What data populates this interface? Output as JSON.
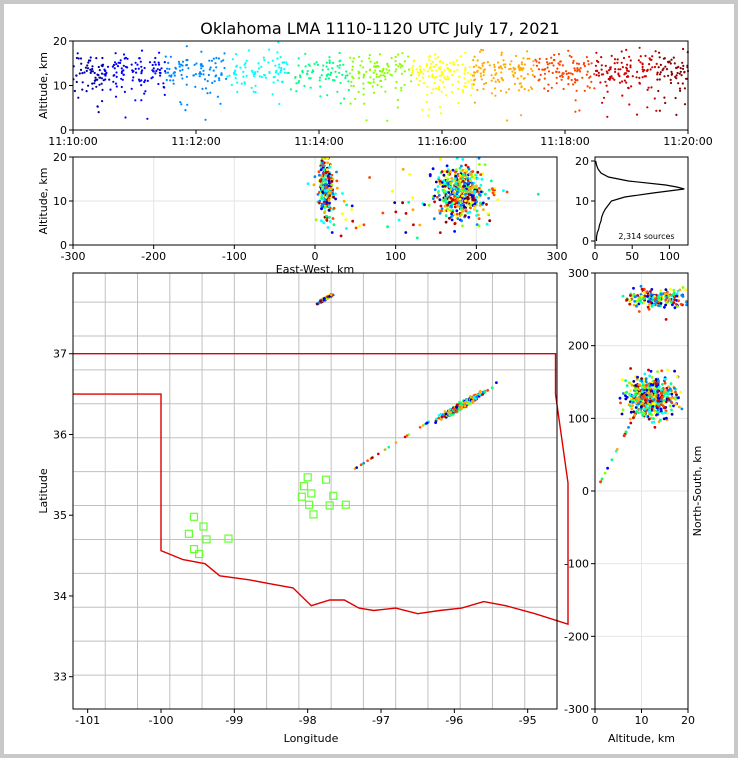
{
  "title": "Oklahoma LMA 1110-1120 UTC July 17, 2021",
  "chart_data": [
    {
      "id": "time_height",
      "type": "scatter",
      "ylabel": "Altitude, km",
      "xlim": [
        "11:10:00",
        "11:20:00"
      ],
      "ylim": [
        0,
        20
      ],
      "xticks": [
        "11:10:00",
        "11:12:00",
        "11:14:00",
        "11:16:00",
        "11:18:00",
        "11:20:00"
      ],
      "yticks": [
        0,
        10,
        20
      ],
      "color_by": "time (blue to red)",
      "density_by_minute": [
        1.0,
        0.85,
        0.7,
        0.65,
        0.9,
        1.0,
        1.0,
        0.9,
        0.95,
        1.0
      ],
      "altitude_mean_km": 13,
      "altitude_spread_km": 3
    },
    {
      "id": "ew_height",
      "type": "scatter",
      "xlabel": "East-West, km",
      "ylabel": "Altitude, km",
      "xlim": [
        -300,
        300
      ],
      "ylim": [
        0,
        20
      ],
      "xticks": [
        -300,
        -200,
        -100,
        0,
        100,
        200,
        300
      ],
      "yticks": [
        0,
        10,
        20
      ],
      "clusters": [
        {
          "x_center_km": 14,
          "x_spread_km": 4,
          "z_center_km": 13,
          "z_spread_km": 4
        },
        {
          "x_center_km": 180,
          "x_spread_km": 14,
          "z_center_km": 12,
          "z_spread_km": 4
        }
      ]
    },
    {
      "id": "altitude_histogram",
      "type": "line",
      "annotation": "2,314 sources",
      "xlim": [
        0,
        125
      ],
      "ylim": [
        -1,
        21
      ],
      "xticks": [
        0,
        50,
        100
      ],
      "yticks": [
        0,
        10,
        20
      ],
      "profile": [
        {
          "alt_km": 0,
          "count": 2
        },
        {
          "alt_km": 1,
          "count": 2
        },
        {
          "alt_km": 2,
          "count": 3
        },
        {
          "alt_km": 3,
          "count": 5
        },
        {
          "alt_km": 4,
          "count": 6
        },
        {
          "alt_km": 5,
          "count": 8
        },
        {
          "alt_km": 6,
          "count": 9
        },
        {
          "alt_km": 7,
          "count": 11
        },
        {
          "alt_km": 8,
          "count": 14
        },
        {
          "alt_km": 9,
          "count": 18
        },
        {
          "alt_km": 10,
          "count": 22
        },
        {
          "alt_km": 11,
          "count": 40
        },
        {
          "alt_km": 12,
          "count": 78
        },
        {
          "alt_km": 13,
          "count": 120
        },
        {
          "alt_km": 13.5,
          "count": 110
        },
        {
          "alt_km": 14,
          "count": 95
        },
        {
          "alt_km": 15,
          "count": 45
        },
        {
          "alt_km": 16,
          "count": 18
        },
        {
          "alt_km": 17,
          "count": 8
        },
        {
          "alt_km": 18,
          "count": 4
        },
        {
          "alt_km": 19,
          "count": 2
        },
        {
          "alt_km": 20,
          "count": 1
        }
      ]
    },
    {
      "id": "plan_view",
      "type": "scatter",
      "xlabel": "Longitude",
      "ylabel": "Latitude",
      "xlim": [
        -101.2,
        -94.6
      ],
      "ylim": [
        32.6,
        38.0
      ],
      "xticks": [
        -101,
        -100,
        -99,
        -98,
        -97,
        -96,
        -95
      ],
      "yticks": [
        33,
        34,
        35,
        36,
        37
      ],
      "stations": [
        {
          "lon": -99.55,
          "lat": 34.98
        },
        {
          "lon": -99.42,
          "lat": 34.86
        },
        {
          "lon": -99.62,
          "lat": 34.77
        },
        {
          "lon": -99.38,
          "lat": 34.7
        },
        {
          "lon": -99.55,
          "lat": 34.58
        },
        {
          "lon": -99.48,
          "lat": 34.52
        },
        {
          "lon": -99.08,
          "lat": 34.71
        },
        {
          "lon": -98.0,
          "lat": 35.47
        },
        {
          "lon": -98.05,
          "lat": 35.36
        },
        {
          "lon": -98.08,
          "lat": 35.23
        },
        {
          "lon": -97.95,
          "lat": 35.27
        },
        {
          "lon": -97.75,
          "lat": 35.44
        },
        {
          "lon": -97.65,
          "lat": 35.24
        },
        {
          "lon": -97.98,
          "lat": 35.13
        },
        {
          "lon": -97.48,
          "lat": 35.13
        },
        {
          "lon": -97.7,
          "lat": 35.12
        },
        {
          "lon": -97.92,
          "lat": 35.01
        }
      ],
      "clusters": [
        {
          "lon_center": -95.88,
          "lat_center": 36.37,
          "spread": 0.12
        },
        {
          "lon_center": -97.76,
          "lat_center": 37.68,
          "spread": 0.04
        }
      ]
    },
    {
      "id": "ns_height",
      "type": "scatter",
      "xlabel": "Altitude, km",
      "ylabel": "North-South, km",
      "xlim": [
        0,
        20
      ],
      "ylim": [
        -300,
        300
      ],
      "xticks": [
        0,
        10,
        20
      ],
      "yticks": [
        -300,
        -200,
        -100,
        0,
        100,
        200,
        300
      ],
      "clusters": [
        {
          "y_center_km": 130,
          "y_spread_km": 14,
          "z_center_km": 12,
          "z_spread_km": 4
        },
        {
          "y_center_km": 265,
          "y_spread_km": 6,
          "z_center_km": 13,
          "z_spread_km": 5
        }
      ]
    }
  ],
  "colors": {
    "state_border": "#dd0000",
    "county_lines": "#c0c0c0",
    "station_marker": "#66ff33",
    "histogram_line": "#000000",
    "time_ramp": [
      "#0000aa",
      "#0000ff",
      "#0088ff",
      "#00ffff",
      "#00ff88",
      "#88ff00",
      "#ffff00",
      "#ffaa00",
      "#ff4400",
      "#cc0000",
      "#880000"
    ]
  }
}
